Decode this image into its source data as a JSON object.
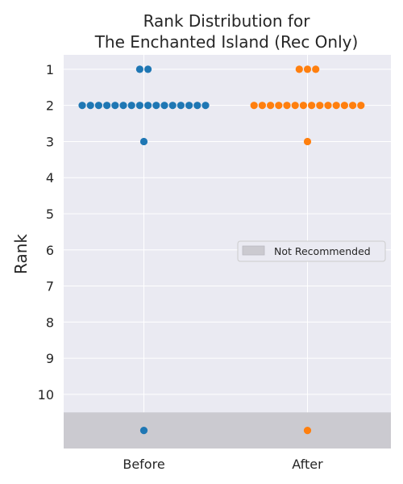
{
  "chart_data": {
    "type": "scatter",
    "subtype": "swarm",
    "title_lines": [
      "Rank Distribution for",
      "The Enchanted Island (Rec Only)"
    ],
    "xlabel": "",
    "ylabel": "Rank",
    "categories": [
      "Before",
      "After"
    ],
    "yticks": [
      "1",
      "2",
      "3",
      "4",
      "5",
      "6",
      "7",
      "8",
      "9",
      "10"
    ],
    "ylim": [
      0.6,
      11.5
    ],
    "y_inverted": true,
    "grid": true,
    "not_recommended_rank": 11,
    "legend": {
      "label": "Not Recommended",
      "placement": "right"
    },
    "series": [
      {
        "category": "Before",
        "color": "#1f77b4",
        "values": [
          1,
          1,
          2,
          2,
          2,
          2,
          2,
          2,
          2,
          2,
          2,
          2,
          2,
          2,
          2,
          2,
          2,
          2,
          3,
          11
        ]
      },
      {
        "category": "After",
        "color": "#ff7f0e",
        "values": [
          1,
          1,
          1,
          2,
          2,
          2,
          2,
          2,
          2,
          2,
          2,
          2,
          2,
          2,
          2,
          2,
          2,
          3,
          11
        ]
      }
    ],
    "colors": {
      "plot_background": "#eaeaf2",
      "grid": "#ffffff",
      "not_recommended_band": "#cbcad0",
      "text": "#262626"
    }
  }
}
